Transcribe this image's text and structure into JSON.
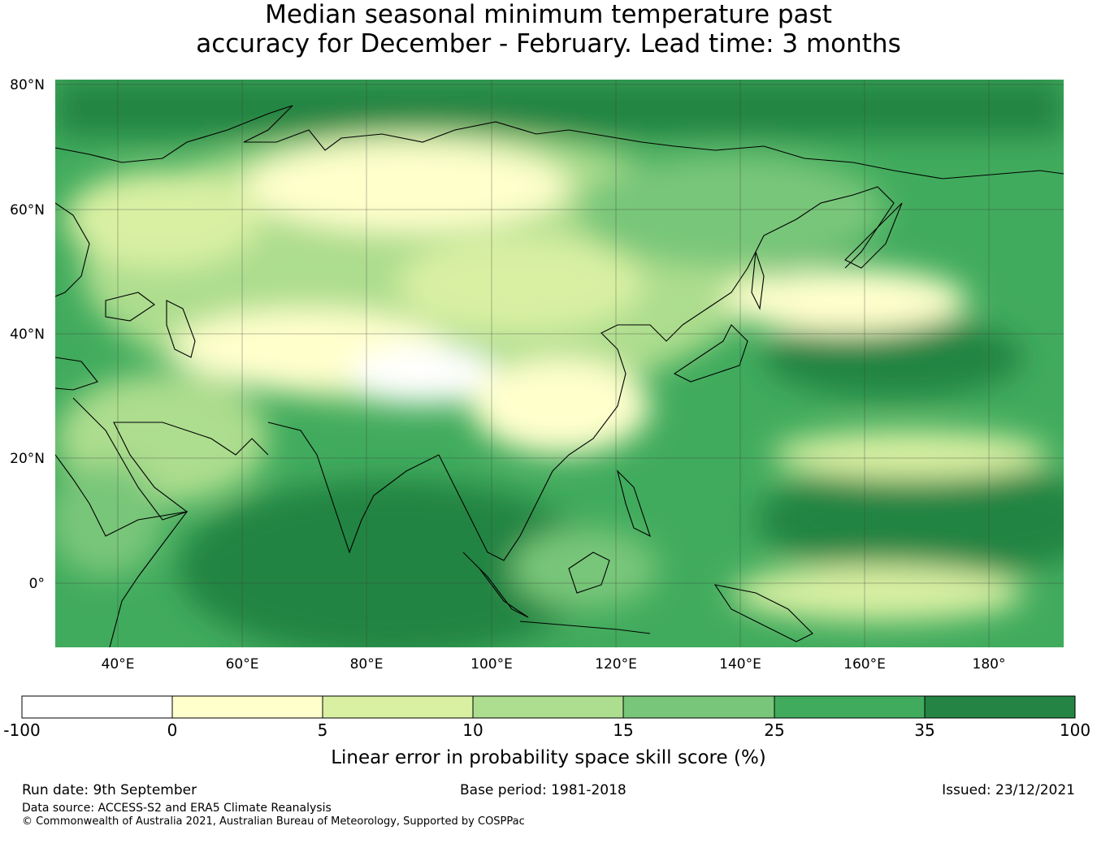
{
  "title": {
    "line1": "Median seasonal minimum temperature past",
    "line2": "accuracy for December - February. Lead time: 3 months"
  },
  "map": {
    "latitude_labels": [
      "80°N",
      "60°N",
      "40°N",
      "20°N",
      "0°"
    ],
    "longitude_labels": [
      "40°E",
      "60°E",
      "80°E",
      "100°E",
      "120°E",
      "140°E",
      "160°E",
      "180°"
    ],
    "extent": {
      "lon_min": 30,
      "lon_max": 192,
      "lat_min": -10,
      "lat_max": 80
    },
    "gridlines": true
  },
  "colorbar": {
    "label": "Linear error in probability space skill score (%)",
    "bins": [
      {
        "from": "-100",
        "to": "0",
        "color": "#ffffff"
      },
      {
        "from": "0",
        "to": "5",
        "color": "#ffffcc"
      },
      {
        "from": "5",
        "to": "10",
        "color": "#d9f0a3"
      },
      {
        "from": "10",
        "to": "15",
        "color": "#addd8e"
      },
      {
        "from": "15",
        "to": "25",
        "color": "#78c679"
      },
      {
        "from": "25",
        "to": "35",
        "color": "#41ab5d"
      },
      {
        "from": "35",
        "to": "100",
        "color": "#238443"
      }
    ],
    "ticks": [
      "-100",
      "0",
      "5",
      "10",
      "15",
      "25",
      "35",
      "100"
    ]
  },
  "footer": {
    "run_date": "Run date: 9th September",
    "base_period": "Base period: 1981-2018",
    "issued": "Issued: 23/12/2021",
    "data_source": "Data source: ACCESS-S2 and ERA5 Climate Reanalysis",
    "copyright": "© Commonwealth of Australia 2021, Australian Bureau of Meteorology, Supported by COSPPac"
  }
}
